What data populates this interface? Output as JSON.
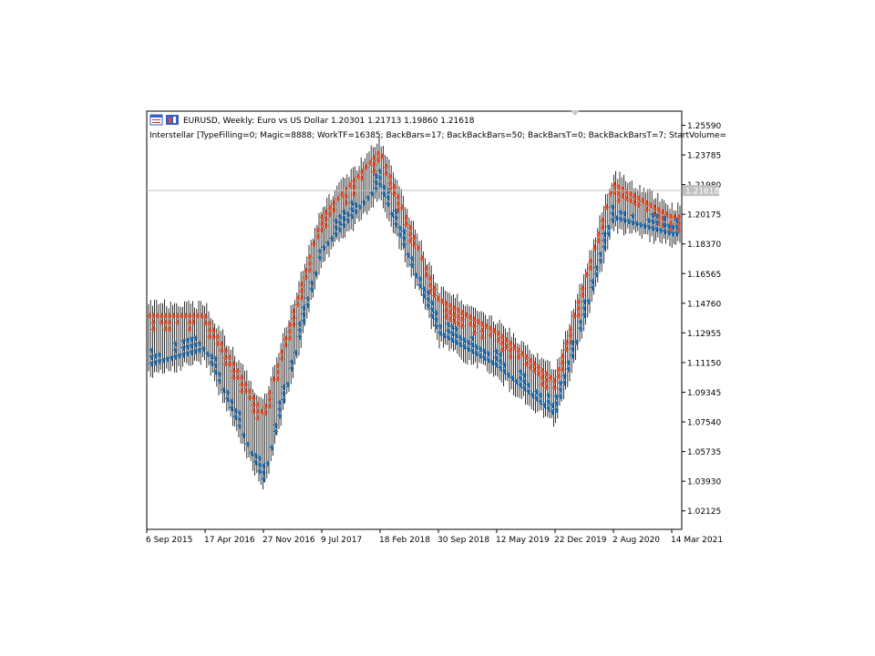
{
  "header": {
    "symbol_line": "EURUSD, Weekly:  Euro vs US Dollar  1.20301 1.21713 1.19860 1.21618",
    "indicator_line": "Interstellar [TypeFilling=0; Magic=8888; WorkTF=16385; BackBars=17; BackBackBars=50; BackBarsT=0; BackBackBarsT=7; StartVolume="
  },
  "colors": {
    "sell_marker": "#e8502a",
    "buy_marker": "#1f6fb5",
    "candle": "#000000",
    "current_price_line": "#c0c0c0",
    "current_price_label_bg": "#c0c0c0"
  },
  "chart_data": {
    "type": "line",
    "title": "",
    "ylim": [
      1.01,
      1.2645
    ],
    "y_ticks": [
      "1.25590",
      "1.23785",
      "1.21980",
      "1.20175",
      "1.18370",
      "1.16565",
      "1.14760",
      "1.12955",
      "1.11150",
      "1.09345",
      "1.07540",
      "1.05735",
      "1.03930",
      "1.02125"
    ],
    "x_tick_labels": [
      "6 Sep 2015",
      "17 Apr 2016",
      "27 Nov 2016",
      "9 Jul 2017",
      "18 Feb 2018",
      "30 Sep 2018",
      "12 May 2019",
      "22 Dec 2019",
      "2 Aug 2020",
      "14 Mar 2021"
    ],
    "current_price": 1.21618,
    "current_price_label": "1.21618",
    "series": [
      {
        "marker": "sell-arrow",
        "x": [
          "6 Sep 2015",
          "17 Apr 2016",
          "27 Nov 2016",
          "9 Jul 2017",
          "18 Feb 2018",
          "30 Sep 2018",
          "12 May 2019",
          "22 Dec 2019",
          "2 Aug 2020",
          "14 Mar 2021"
        ],
        "values": [
          1.14,
          1.14,
          1.08,
          1.2,
          1.24,
          1.15,
          1.13,
          1.1,
          1.22,
          1.2
        ]
      },
      {
        "marker": "buy-arrow",
        "x": [
          "6 Sep 2015",
          "17 Apr 2016",
          "27 Nov 2016",
          "9 Jul 2017",
          "18 Feb 2018",
          "30 Sep 2018",
          "12 May 2019",
          "22 Dec 2019",
          "2 Aug 2020",
          "14 Mar 2021"
        ],
        "values": [
          1.11,
          1.12,
          1.04,
          1.18,
          1.22,
          1.13,
          1.11,
          1.08,
          1.2,
          1.19
        ]
      }
    ]
  }
}
